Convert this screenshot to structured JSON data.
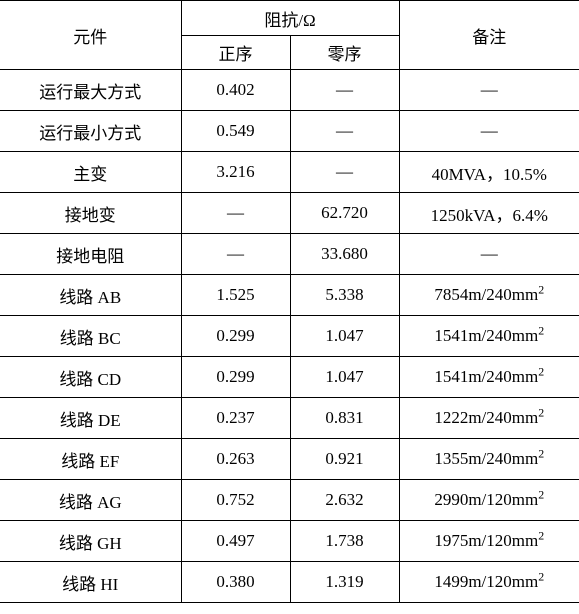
{
  "header": {
    "component": "元件",
    "impedance": "阻抗/Ω",
    "remark": "备注",
    "positive": "正序",
    "zero": "零序"
  },
  "rows": [
    {
      "component": "运行最大方式",
      "positive": "0.402",
      "zero": "—",
      "remark": "—",
      "compClass": "",
      "remarkHtml": "—"
    },
    {
      "component": "运行最小方式",
      "positive": "0.549",
      "zero": "—",
      "remark": "—",
      "compClass": "",
      "remarkHtml": "—"
    },
    {
      "component": "主变",
      "positive": "3.216",
      "zero": "—",
      "remark": "40MVA，10.5%",
      "compClass": "",
      "remarkHtml": "40MVA，10.5%"
    },
    {
      "component": "接地变",
      "positive": "—",
      "zero": "62.720",
      "remark": "1250kVA，6.4%",
      "compClass": "",
      "remarkHtml": "1250kVA，6.4%"
    },
    {
      "component": "接地电阻",
      "positive": "—",
      "zero": "33.680",
      "remark": "—",
      "compClass": "",
      "remarkHtml": "—"
    },
    {
      "component": "线路 AB",
      "positive": "1.525",
      "zero": "5.338",
      "remark": "7854m/240mm2",
      "compClass": "",
      "remarkHtml": "7854m/240mm<span class=\"sup\">2</span>"
    },
    {
      "component": "线路 BC",
      "positive": "0.299",
      "zero": "1.047",
      "remark": "1541m/240mm2",
      "compClass": "",
      "remarkHtml": "1541m/240mm<span class=\"sup\">2</span>"
    },
    {
      "component": "线路 CD",
      "positive": "0.299",
      "zero": "1.047",
      "remark": "1541m/240mm2",
      "compClass": "",
      "remarkHtml": "1541m/240mm<span class=\"sup\">2</span>"
    },
    {
      "component": "线路 DE",
      "positive": "0.237",
      "zero": "0.831",
      "remark": "1222m/240mm2",
      "compClass": "",
      "remarkHtml": "1222m/240mm<span class=\"sup\">2</span>"
    },
    {
      "component": "线路 EF",
      "positive": "0.263",
      "zero": "0.921",
      "remark": "1355m/240mm2",
      "compClass": "",
      "remarkHtml": "1355m/240mm<span class=\"sup\">2</span>"
    },
    {
      "component": "线路 AG",
      "positive": "0.752",
      "zero": "2.632",
      "remark": "2990m/120mm2",
      "compClass": "",
      "remarkHtml": "2990m/120mm<span class=\"sup\">2</span>"
    },
    {
      "component": "线路 GH",
      "positive": "0.497",
      "zero": "1.738",
      "remark": "1975m/120mm2",
      "compClass": "",
      "remarkHtml": "1975m/120mm<span class=\"sup\">2</span>"
    },
    {
      "component": "线路 HI",
      "positive": "0.380",
      "zero": "1.319",
      "remark": "1499m/120mm2",
      "compClass": "",
      "remarkHtml": "1499m/120mm<span class=\"sup\">2</span>"
    }
  ]
}
